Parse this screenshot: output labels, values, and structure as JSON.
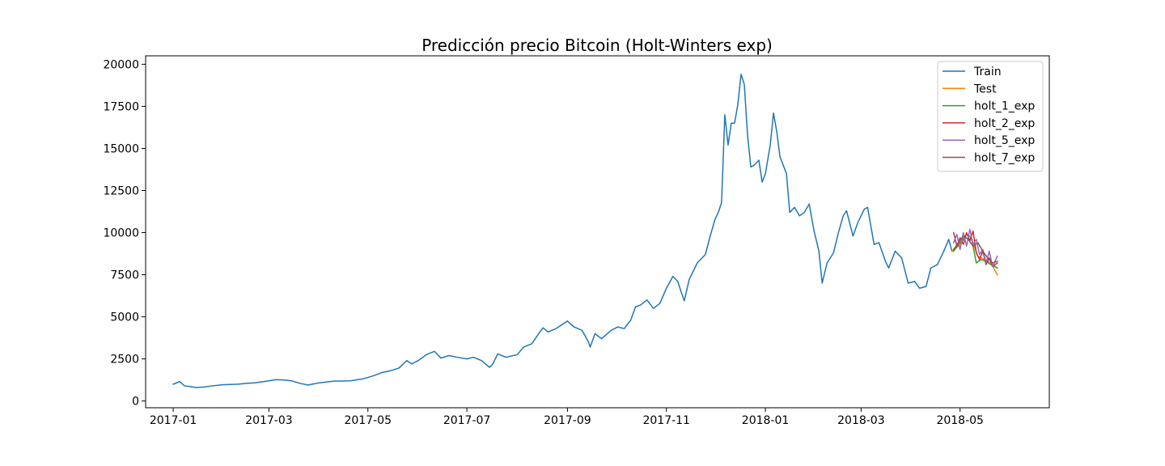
{
  "chart_data": {
    "type": "line",
    "title": "Predicción precio Bitcoin (Holt-Winters exp)",
    "xlabel": "",
    "ylabel": "",
    "xlim": [
      "2016-12-15",
      "2018-06-25"
    ],
    "ylim": [
      -400,
      20500
    ],
    "x_ticks": [
      "2017-01-01",
      "2017-03-01",
      "2017-05-01",
      "2017-07-01",
      "2017-09-01",
      "2017-11-01",
      "2018-01-01",
      "2018-03-01",
      "2018-05-01"
    ],
    "x_tick_labels": [
      "2017-01",
      "2017-03",
      "2017-05",
      "2017-07",
      "2017-09",
      "2017-11",
      "2018-01",
      "2018-03",
      "2018-05"
    ],
    "y_ticks": [
      0,
      2500,
      5000,
      7500,
      10000,
      12500,
      15000,
      17500,
      20000
    ],
    "y_tick_labels": [
      "0",
      "2500",
      "5000",
      "7500",
      "10000",
      "12500",
      "15000",
      "17500",
      "20000"
    ],
    "grid": false,
    "legend_position": "top-right",
    "series": [
      {
        "name": "Train",
        "color": "#1f77b4",
        "points": [
          [
            "2017-01-01",
            1000
          ],
          [
            "2017-01-05",
            1150
          ],
          [
            "2017-01-08",
            900
          ],
          [
            "2017-01-12",
            850
          ],
          [
            "2017-01-15",
            800
          ],
          [
            "2017-01-20",
            830
          ],
          [
            "2017-01-25",
            900
          ],
          [
            "2017-02-01",
            970
          ],
          [
            "2017-02-10",
            1000
          ],
          [
            "2017-02-15",
            1050
          ],
          [
            "2017-02-20",
            1080
          ],
          [
            "2017-03-01",
            1200
          ],
          [
            "2017-03-05",
            1270
          ],
          [
            "2017-03-10",
            1250
          ],
          [
            "2017-03-15",
            1200
          ],
          [
            "2017-03-20",
            1050
          ],
          [
            "2017-03-25",
            950
          ],
          [
            "2017-04-01",
            1080
          ],
          [
            "2017-04-10",
            1180
          ],
          [
            "2017-04-20",
            1200
          ],
          [
            "2017-04-28",
            1320
          ],
          [
            "2017-05-01",
            1400
          ],
          [
            "2017-05-05",
            1520
          ],
          [
            "2017-05-10",
            1700
          ],
          [
            "2017-05-15",
            1800
          ],
          [
            "2017-05-20",
            1950
          ],
          [
            "2017-05-25",
            2400
          ],
          [
            "2017-05-28",
            2200
          ],
          [
            "2017-06-01",
            2400
          ],
          [
            "2017-06-06",
            2750
          ],
          [
            "2017-06-11",
            2950
          ],
          [
            "2017-06-15",
            2550
          ],
          [
            "2017-06-20",
            2700
          ],
          [
            "2017-06-25",
            2600
          ],
          [
            "2017-07-01",
            2500
          ],
          [
            "2017-07-05",
            2600
          ],
          [
            "2017-07-10",
            2400
          ],
          [
            "2017-07-15",
            2000
          ],
          [
            "2017-07-17",
            2200
          ],
          [
            "2017-07-20",
            2800
          ],
          [
            "2017-07-25",
            2600
          ],
          [
            "2017-08-01",
            2750
          ],
          [
            "2017-08-05",
            3200
          ],
          [
            "2017-08-10",
            3400
          ],
          [
            "2017-08-15",
            4100
          ],
          [
            "2017-08-17",
            4350
          ],
          [
            "2017-08-20",
            4100
          ],
          [
            "2017-08-25",
            4300
          ],
          [
            "2017-09-01",
            4750
          ],
          [
            "2017-09-05",
            4400
          ],
          [
            "2017-09-10",
            4200
          ],
          [
            "2017-09-14",
            3500
          ],
          [
            "2017-09-15",
            3200
          ],
          [
            "2017-09-18",
            4000
          ],
          [
            "2017-09-22",
            3700
          ],
          [
            "2017-09-28",
            4200
          ],
          [
            "2017-10-02",
            4400
          ],
          [
            "2017-10-06",
            4300
          ],
          [
            "2017-10-10",
            4800
          ],
          [
            "2017-10-13",
            5600
          ],
          [
            "2017-10-16",
            5700
          ],
          [
            "2017-10-20",
            6000
          ],
          [
            "2017-10-24",
            5500
          ],
          [
            "2017-10-28",
            5800
          ],
          [
            "2017-11-01",
            6700
          ],
          [
            "2017-11-05",
            7400
          ],
          [
            "2017-11-08",
            7100
          ],
          [
            "2017-11-10",
            6500
          ],
          [
            "2017-11-12",
            5950
          ],
          [
            "2017-11-15",
            7200
          ],
          [
            "2017-11-20",
            8200
          ],
          [
            "2017-11-25",
            8700
          ],
          [
            "2017-11-28",
            9800
          ],
          [
            "2017-12-01",
            10800
          ],
          [
            "2017-12-03",
            11200
          ],
          [
            "2017-12-05",
            11800
          ],
          [
            "2017-12-07",
            17000
          ],
          [
            "2017-12-09",
            15200
          ],
          [
            "2017-12-11",
            16500
          ],
          [
            "2017-12-13",
            16500
          ],
          [
            "2017-12-15",
            17600
          ],
          [
            "2017-12-17",
            19400
          ],
          [
            "2017-12-19",
            18800
          ],
          [
            "2017-12-21",
            15800
          ],
          [
            "2017-12-23",
            13900
          ],
          [
            "2017-12-25",
            14000
          ],
          [
            "2017-12-28",
            14300
          ],
          [
            "2017-12-30",
            13000
          ],
          [
            "2018-01-01",
            13500
          ],
          [
            "2018-01-04",
            15200
          ],
          [
            "2018-01-06",
            17100
          ],
          [
            "2018-01-08",
            16000
          ],
          [
            "2018-01-10",
            14500
          ],
          [
            "2018-01-14",
            13500
          ],
          [
            "2018-01-16",
            11200
          ],
          [
            "2018-01-19",
            11500
          ],
          [
            "2018-01-22",
            11000
          ],
          [
            "2018-01-25",
            11200
          ],
          [
            "2018-01-28",
            11700
          ],
          [
            "2018-01-31",
            10100
          ],
          [
            "2018-02-03",
            8900
          ],
          [
            "2018-02-05",
            7000
          ],
          [
            "2018-02-08",
            8200
          ],
          [
            "2018-02-12",
            8800
          ],
          [
            "2018-02-15",
            10000
          ],
          [
            "2018-02-18",
            11000
          ],
          [
            "2018-02-20",
            11300
          ],
          [
            "2018-02-24",
            9800
          ],
          [
            "2018-02-27",
            10600
          ],
          [
            "2018-03-03",
            11400
          ],
          [
            "2018-03-05",
            11500
          ],
          [
            "2018-03-09",
            9300
          ],
          [
            "2018-03-12",
            9400
          ],
          [
            "2018-03-16",
            8300
          ],
          [
            "2018-03-18",
            7900
          ],
          [
            "2018-03-22",
            8900
          ],
          [
            "2018-03-26",
            8500
          ],
          [
            "2018-03-30",
            7000
          ],
          [
            "2018-04-03",
            7100
          ],
          [
            "2018-04-06",
            6700
          ],
          [
            "2018-04-10",
            6800
          ],
          [
            "2018-04-13",
            7900
          ],
          [
            "2018-04-17",
            8100
          ],
          [
            "2018-04-21",
            8900
          ],
          [
            "2018-04-24",
            9600
          ],
          [
            "2018-04-26",
            8900
          ]
        ]
      },
      {
        "name": "Test",
        "color": "#ff7f0e",
        "points": [
          [
            "2018-04-26",
            8900
          ],
          [
            "2018-04-30",
            9200
          ],
          [
            "2018-05-04",
            9700
          ],
          [
            "2018-05-08",
            9600
          ],
          [
            "2018-05-12",
            8600
          ],
          [
            "2018-05-16",
            8400
          ],
          [
            "2018-05-20",
            8200
          ],
          [
            "2018-05-24",
            7500
          ]
        ]
      },
      {
        "name": "holt_1_exp",
        "color": "#2ca02c",
        "points": [
          [
            "2018-04-27",
            8900
          ],
          [
            "2018-04-30",
            9300
          ],
          [
            "2018-05-02",
            9500
          ],
          [
            "2018-05-05",
            9900
          ],
          [
            "2018-05-08",
            9700
          ],
          [
            "2018-05-11",
            8200
          ],
          [
            "2018-05-14",
            8400
          ],
          [
            "2018-05-17",
            8300
          ],
          [
            "2018-05-20",
            8100
          ],
          [
            "2018-05-24",
            7900
          ]
        ]
      },
      {
        "name": "holt_2_exp",
        "color": "#d62728",
        "points": [
          [
            "2018-04-27",
            10000
          ],
          [
            "2018-04-29",
            9200
          ],
          [
            "2018-05-01",
            9700
          ],
          [
            "2018-05-03",
            9300
          ],
          [
            "2018-05-05",
            10000
          ],
          [
            "2018-05-07",
            9500
          ],
          [
            "2018-05-09",
            10100
          ],
          [
            "2018-05-11",
            8800
          ],
          [
            "2018-05-13",
            8400
          ],
          [
            "2018-05-15",
            8900
          ],
          [
            "2018-05-17",
            8100
          ],
          [
            "2018-05-19",
            8500
          ],
          [
            "2018-05-21",
            8000
          ],
          [
            "2018-05-24",
            8200
          ]
        ]
      },
      {
        "name": "holt_5_exp",
        "color": "#9467bd",
        "points": [
          [
            "2018-04-27",
            9400
          ],
          [
            "2018-04-29",
            9900
          ],
          [
            "2018-05-01",
            9000
          ],
          [
            "2018-05-03",
            10000
          ],
          [
            "2018-05-05",
            9200
          ],
          [
            "2018-05-07",
            10200
          ],
          [
            "2018-05-09",
            9300
          ],
          [
            "2018-05-11",
            9600
          ],
          [
            "2018-05-13",
            8700
          ],
          [
            "2018-05-15",
            9000
          ],
          [
            "2018-05-17",
            8200
          ],
          [
            "2018-05-19",
            8900
          ],
          [
            "2018-05-21",
            8000
          ],
          [
            "2018-05-24",
            8600
          ]
        ]
      },
      {
        "name": "holt_7_exp",
        "color": "#8c564b",
        "points": [
          [
            "2018-04-27",
            9000
          ],
          [
            "2018-04-30",
            9400
          ],
          [
            "2018-05-03",
            9800
          ],
          [
            "2018-05-06",
            9600
          ],
          [
            "2018-05-09",
            9200
          ],
          [
            "2018-05-12",
            9400
          ],
          [
            "2018-05-15",
            8900
          ],
          [
            "2018-05-18",
            8500
          ],
          [
            "2018-05-21",
            8200
          ],
          [
            "2018-05-24",
            8300
          ]
        ]
      }
    ]
  }
}
